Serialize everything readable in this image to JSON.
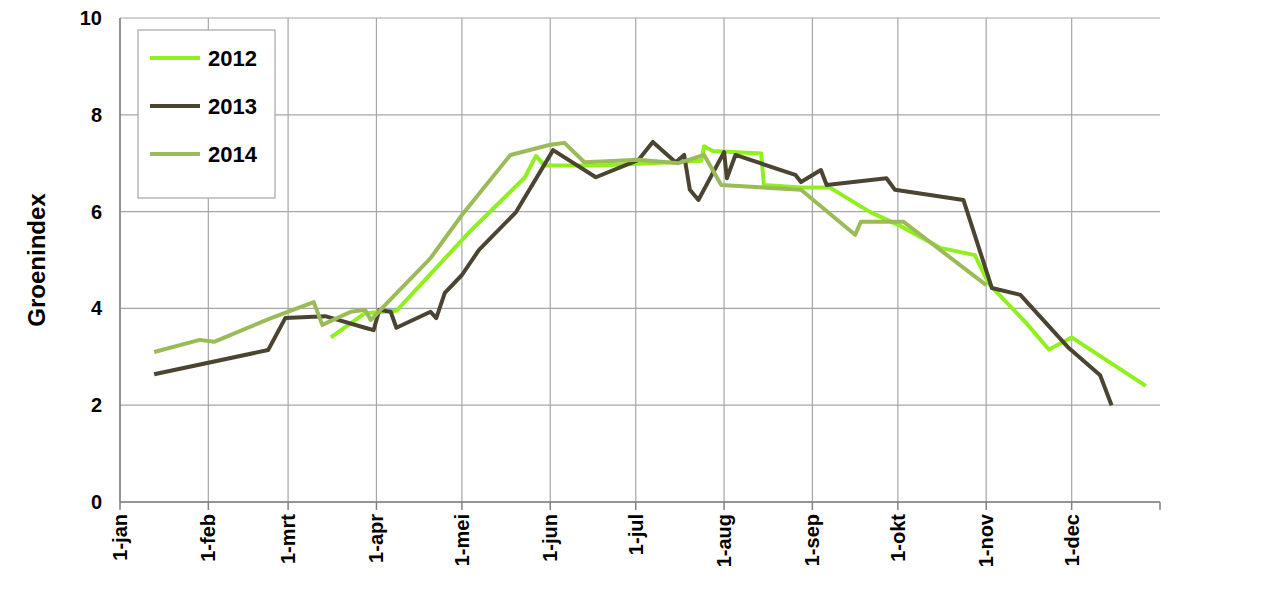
{
  "chart_data": {
    "type": "line",
    "y_label": "Groenindex",
    "xlim": [
      1,
      366
    ],
    "xticks": [
      {
        "value": 1,
        "label": "1-jan"
      },
      {
        "value": 32,
        "label": "1-feb"
      },
      {
        "value": 60,
        "label": "1-mrt"
      },
      {
        "value": 91,
        "label": "1-apr"
      },
      {
        "value": 121,
        "label": "1-mei"
      },
      {
        "value": 152,
        "label": "1-jun"
      },
      {
        "value": 182,
        "label": "1-jul"
      },
      {
        "value": 213,
        "label": "1-aug"
      },
      {
        "value": 244,
        "label": "1-sep"
      },
      {
        "value": 274,
        "label": "1-okt"
      },
      {
        "value": 305,
        "label": "1-nov"
      },
      {
        "value": 335,
        "label": "1-dec"
      }
    ],
    "ylim": [
      0,
      10
    ],
    "yticks": [
      0,
      2,
      4,
      6,
      8,
      10
    ],
    "grid": true,
    "legend": "upper left",
    "series": [
      {
        "name": "2012",
        "color": "#8ff01e",
        "x": [
          75,
          87,
          98,
          124,
          143,
          147,
          150,
          169,
          187,
          205,
          206,
          209,
          226,
          227,
          240,
          250,
          264,
          275,
          289,
          301,
          306,
          319,
          327,
          335,
          361
        ],
        "values": [
          3.4,
          3.9,
          3.95,
          5.6,
          6.7,
          7.15,
          6.95,
          6.95,
          7.0,
          7.05,
          7.35,
          7.25,
          7.2,
          6.55,
          6.5,
          6.5,
          6.0,
          5.7,
          5.25,
          5.1,
          4.5,
          3.7,
          3.15,
          3.4,
          2.4
        ]
      },
      {
        "name": "2013",
        "color": "#4a4431",
        "x": [
          13,
          53,
          59,
          73,
          87,
          90,
          92,
          96,
          98,
          110,
          112,
          115,
          121,
          127,
          140,
          153,
          168,
          183,
          188,
          196,
          199,
          201,
          204,
          213,
          214,
          217,
          238,
          240,
          247,
          249,
          270,
          273,
          297,
          307,
          317,
          334,
          345,
          349
        ],
        "values": [
          2.64,
          3.14,
          3.8,
          3.84,
          3.6,
          3.55,
          3.97,
          3.93,
          3.6,
          3.93,
          3.8,
          4.32,
          4.69,
          5.21,
          5.99,
          7.27,
          6.71,
          7.07,
          7.44,
          7.02,
          7.17,
          6.45,
          6.24,
          7.23,
          6.69,
          7.17,
          6.76,
          6.61,
          6.86,
          6.55,
          6.69,
          6.45,
          6.24,
          4.42,
          4.28,
          3.18,
          2.62,
          2.0
        ]
      },
      {
        "name": "2014",
        "color": "#9bbb59",
        "x": [
          13,
          29,
          34,
          54,
          69,
          72,
          82,
          87,
          89,
          94,
          110,
          121,
          138,
          152,
          157,
          164,
          183,
          197,
          206,
          212,
          240,
          259,
          261,
          276,
          305
        ],
        "values": [
          3.1,
          3.35,
          3.31,
          3.8,
          4.13,
          3.66,
          3.93,
          3.97,
          3.76,
          4.07,
          5.04,
          5.93,
          7.17,
          7.38,
          7.42,
          7.02,
          7.07,
          7.0,
          7.17,
          6.55,
          6.45,
          5.52,
          5.79,
          5.79,
          4.48
        ]
      }
    ]
  }
}
